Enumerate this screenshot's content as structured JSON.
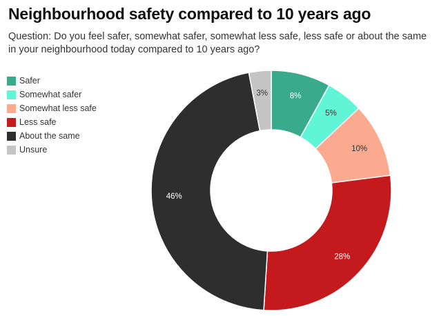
{
  "header": {
    "title": "Neighbourhood safety compared to 10 years ago",
    "subtitle": "Question: Do you feel safer, somewhat safer, somewhat less safe, less safe or about the same in your neighbourhood today compared to 10 years ago?"
  },
  "chart_data": {
    "type": "pie",
    "donut": true,
    "title": "Neighbourhood safety compared to 10 years ago",
    "legend_position": "left",
    "slices": [
      {
        "name": "Safer",
        "value": 8,
        "label": "8%",
        "color": "#3aaa8c",
        "label_color": "#ffffff"
      },
      {
        "name": "Somewhat safer",
        "value": 5,
        "label": "5%",
        "color": "#5ff5d6",
        "label_color": "#333333"
      },
      {
        "name": "Somewhat less safe",
        "value": 10,
        "label": "10%",
        "color": "#fba98f",
        "label_color": "#333333"
      },
      {
        "name": "Less safe",
        "value": 28,
        "label": "28%",
        "color": "#c41a1d",
        "label_color": "#ffffff"
      },
      {
        "name": "About the same",
        "value": 46,
        "label": "46%",
        "color": "#2e2e2e",
        "label_color": "#ffffff"
      },
      {
        "name": "Unsure",
        "value": 3,
        "label": "3%",
        "color": "#c4c4c4",
        "label_color": "#333333"
      }
    ]
  }
}
